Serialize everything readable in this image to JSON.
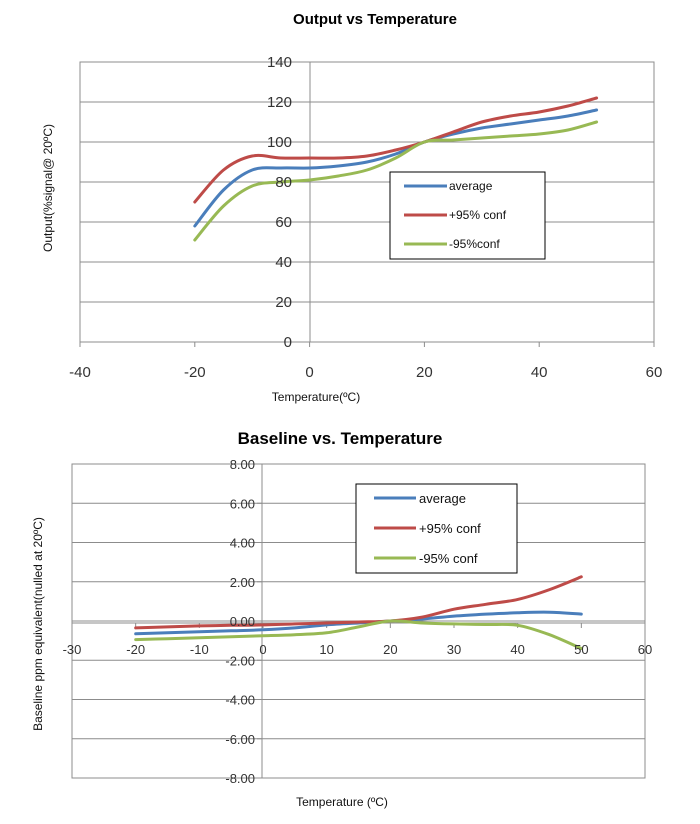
{
  "chart_data": [
    {
      "type": "line",
      "title": "Output vs Temperature",
      "xlabel": "Temperature(ºC)",
      "ylabel": "Output(%signal@ 20ºC)",
      "xlim": [
        -40,
        60
      ],
      "ylim": [
        0,
        140
      ],
      "x_ticks": [
        "-40",
        "-20",
        "0",
        "20",
        "40",
        "60"
      ],
      "y_ticks": [
        "0",
        "20",
        "40",
        "60",
        "80",
        "100",
        "120",
        "140"
      ],
      "grid": "horizontal",
      "legend_position": "center-right",
      "x": [
        -20,
        -15,
        -10,
        -5,
        0,
        5,
        10,
        15,
        20,
        25,
        30,
        35,
        40,
        45,
        50
      ],
      "series": [
        {
          "name": "average",
          "color": "#4a7ebb",
          "values": [
            58,
            76,
            86,
            87,
            87,
            88,
            90,
            94,
            100,
            104,
            107,
            109,
            111,
            113,
            116
          ]
        },
        {
          "name": "+95% conf",
          "color": "#be4b48",
          "values": [
            70,
            86,
            93,
            92,
            92,
            92,
            93,
            96,
            100,
            105,
            110,
            113,
            115,
            118,
            122
          ]
        },
        {
          "name": "-95%conf",
          "color": "#98b954",
          "values": [
            51,
            68,
            78,
            80,
            81,
            83,
            86,
            92,
            100,
            101,
            102,
            103,
            104,
            106,
            110
          ]
        }
      ]
    },
    {
      "type": "line",
      "title": "Baseline vs. Temperature",
      "xlabel": "Temperature  (ºC)",
      "ylabel": "Baseline ppm equivalent(nulled  at 20ºC)",
      "xlim": [
        -30,
        60
      ],
      "ylim": [
        -8,
        8
      ],
      "x_ticks": [
        "-30",
        "-20",
        "-10",
        "0",
        "10",
        "20",
        "30",
        "40",
        "50",
        "60"
      ],
      "y_ticks": [
        "8.00",
        "6.00",
        "4.00",
        "2.00",
        "0.00",
        "-2.00",
        "-4.00",
        "-6.00",
        "-8.00"
      ],
      "grid": "horizontal",
      "legend_position": "top-right",
      "x": [
        -20,
        -15,
        -10,
        -5,
        0,
        5,
        10,
        15,
        20,
        25,
        30,
        35,
        40,
        45,
        50
      ],
      "series": [
        {
          "name": "average",
          "color": "#4a7ebb",
          "values": [
            -0.65,
            -0.6,
            -0.55,
            -0.5,
            -0.45,
            -0.35,
            -0.2,
            -0.1,
            0.0,
            0.1,
            0.25,
            0.35,
            0.42,
            0.45,
            0.35
          ]
        },
        {
          "name": "+95% conf",
          "color": "#be4b48",
          "values": [
            -0.35,
            -0.3,
            -0.25,
            -0.22,
            -0.2,
            -0.15,
            -0.1,
            -0.05,
            0.0,
            0.2,
            0.6,
            0.85,
            1.1,
            1.6,
            2.25
          ]
        },
        {
          "name": "-95% conf",
          "color": "#98b954",
          "values": [
            -0.95,
            -0.9,
            -0.85,
            -0.8,
            -0.75,
            -0.7,
            -0.6,
            -0.3,
            0.0,
            -0.1,
            -0.15,
            -0.18,
            -0.22,
            -0.7,
            -1.4
          ]
        }
      ]
    }
  ]
}
